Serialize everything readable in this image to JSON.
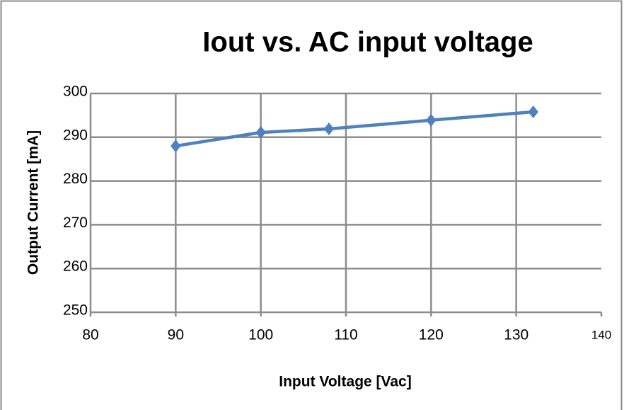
{
  "chart_data": {
    "type": "line",
    "title": "Iout vs. AC input voltage",
    "x_label": "Input Voltage [Vac]",
    "y_label": "Output Current [mA]",
    "x": [
      90,
      100,
      108,
      120,
      132
    ],
    "series": [
      {
        "name": "Iout",
        "color": "#4f81bd",
        "values": [
          288,
          291.1,
          291.9,
          293.9,
          295.8
        ]
      }
    ],
    "xlim": [
      80,
      140
    ],
    "xticks": [
      80,
      90,
      100,
      110,
      120,
      130,
      140
    ],
    "ylim": [
      250,
      300
    ],
    "yticks": [
      250,
      260,
      270,
      280,
      290,
      300
    ],
    "grid": true
  }
}
